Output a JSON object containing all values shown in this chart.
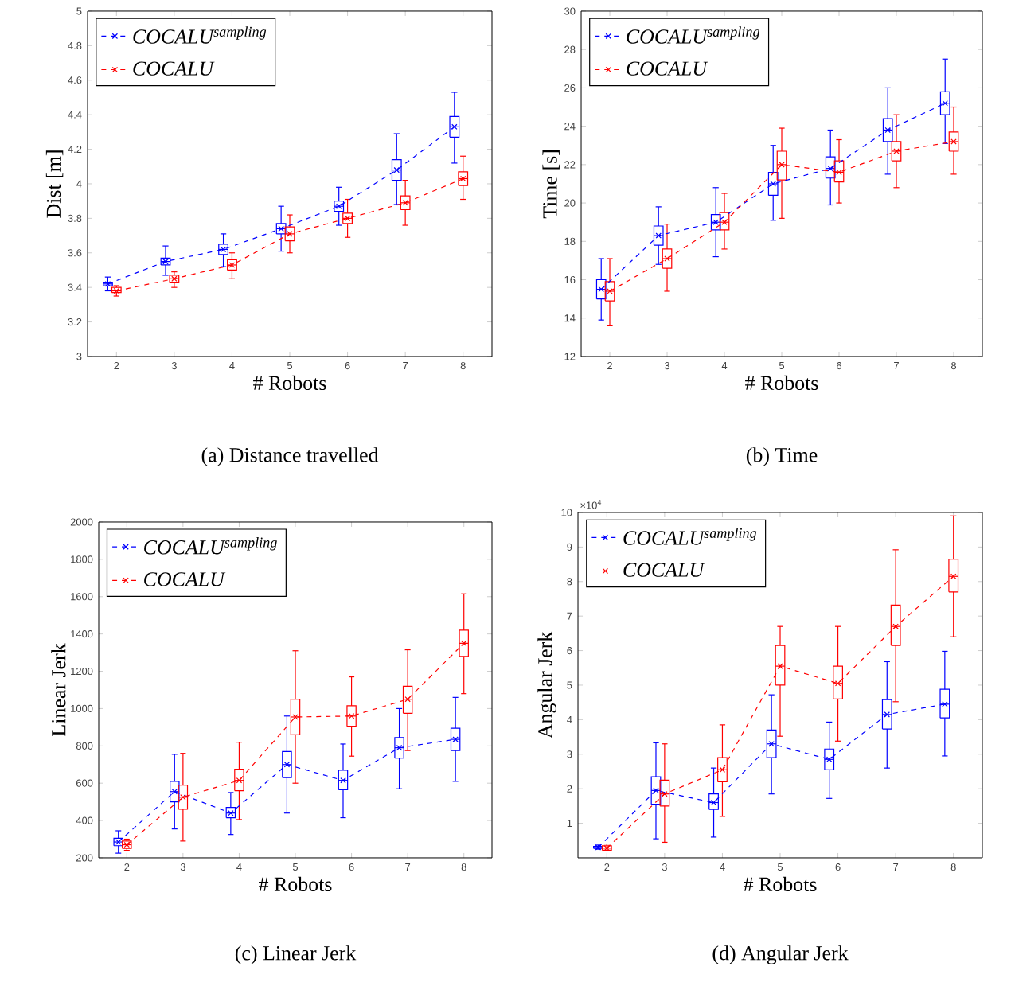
{
  "chart_data": [
    {
      "type": "box",
      "title": "(a) Distance travelled",
      "xlabel": "# Robots",
      "ylabel": "Dist [m]",
      "xlim": [
        1.5,
        8.5
      ],
      "xticks": [
        2,
        3,
        4,
        5,
        6,
        7,
        8
      ],
      "ylim": [
        3,
        5
      ],
      "yticks": [
        3,
        3.2,
        3.4,
        3.6,
        3.8,
        4,
        4.2,
        4.4,
        4.6,
        4.8,
        5
      ],
      "legend": "top left",
      "series": [
        {
          "type": "line",
          "name": "COCALU$^{sampling}$",
          "color": "#0000ff",
          "marker": "cross",
          "line_style": "dashed",
          "x": [
            1.85,
            2.85,
            3.85,
            4.85,
            5.85,
            6.85,
            7.85
          ],
          "values": [
            3.42,
            3.55,
            3.62,
            3.74,
            3.87,
            4.08,
            4.33
          ]
        },
        {
          "type": "line",
          "name": "COCALU",
          "color": "#ff0000",
          "marker": "cross",
          "line_style": "dashed",
          "x": [
            2,
            3,
            4,
            5,
            6,
            7,
            8
          ],
          "values": [
            3.38,
            3.45,
            3.53,
            3.71,
            3.8,
            3.89,
            4.03
          ]
        },
        {
          "color": "#0000ff",
          "x": [
            1.85,
            2.85,
            3.85,
            4.85,
            5.85,
            6.85,
            7.85
          ],
          "boxes": [
            {
              "low": 3.38,
              "q1": 3.41,
              "median": 3.42,
              "q3": 3.43,
              "high": 3.46
            },
            {
              "low": 3.47,
              "q1": 3.53,
              "median": 3.55,
              "q3": 3.57,
              "high": 3.64
            },
            {
              "low": 3.52,
              "q1": 3.59,
              "median": 3.62,
              "q3": 3.65,
              "high": 3.71
            },
            {
              "low": 3.61,
              "q1": 3.71,
              "median": 3.74,
              "q3": 3.77,
              "high": 3.87
            },
            {
              "low": 3.76,
              "q1": 3.84,
              "median": 3.87,
              "q3": 3.9,
              "high": 3.98
            },
            {
              "low": 3.88,
              "q1": 4.02,
              "median": 4.08,
              "q3": 4.14,
              "high": 4.29
            },
            {
              "low": 4.12,
              "q1": 4.27,
              "median": 4.33,
              "q3": 4.39,
              "high": 4.53
            }
          ]
        },
        {
          "color": "#ff0000",
          "x": [
            2,
            3,
            4,
            5,
            6,
            7,
            8
          ],
          "boxes": [
            {
              "low": 3.35,
              "q1": 3.37,
              "median": 3.38,
              "q3": 3.4,
              "high": 3.41
            },
            {
              "low": 3.4,
              "q1": 3.43,
              "median": 3.45,
              "q3": 3.47,
              "high": 3.49
            },
            {
              "low": 3.45,
              "q1": 3.5,
              "median": 3.53,
              "q3": 3.56,
              "high": 3.6
            },
            {
              "low": 3.6,
              "q1": 3.67,
              "median": 3.71,
              "q3": 3.75,
              "high": 3.82
            },
            {
              "low": 3.69,
              "q1": 3.77,
              "median": 3.8,
              "q3": 3.83,
              "high": 3.91
            },
            {
              "low": 3.76,
              "q1": 3.85,
              "median": 3.89,
              "q3": 3.93,
              "high": 4.02
            },
            {
              "low": 3.91,
              "q1": 3.99,
              "median": 4.03,
              "q3": 4.07,
              "high": 4.16
            }
          ]
        }
      ]
    },
    {
      "type": "box",
      "title": "(b) Time",
      "xlabel": "# Robots",
      "ylabel": "Time [s]",
      "xlim": [
        1.5,
        8.5
      ],
      "xticks": [
        2,
        3,
        4,
        5,
        6,
        7,
        8
      ],
      "ylim": [
        12,
        30
      ],
      "yticks": [
        12,
        14,
        16,
        18,
        20,
        22,
        24,
        26,
        28,
        30
      ],
      "legend": "top left",
      "series": [
        {
          "type": "line",
          "name": "COCALU$^{sampling}$",
          "color": "#0000ff",
          "marker": "cross",
          "line_style": "dashed",
          "x": [
            1.85,
            2.85,
            3.85,
            4.85,
            5.85,
            6.85,
            7.85
          ],
          "values": [
            15.5,
            18.3,
            19.0,
            21.0,
            21.8,
            23.8,
            25.2
          ]
        },
        {
          "type": "line",
          "name": "COCALU",
          "color": "#ff0000",
          "marker": "cross",
          "line_style": "dashed",
          "x": [
            2,
            3,
            4,
            5,
            6,
            7,
            8
          ],
          "values": [
            15.4,
            17.1,
            19.0,
            22.0,
            21.6,
            22.7,
            23.2
          ]
        },
        {
          "color": "#0000ff",
          "x": [
            1.85,
            2.85,
            3.85,
            4.85,
            5.85,
            6.85,
            7.85
          ],
          "boxes": [
            {
              "low": 13.9,
              "q1": 15.0,
              "median": 15.5,
              "q3": 16.0,
              "high": 17.1
            },
            {
              "low": 16.8,
              "q1": 17.8,
              "median": 18.3,
              "q3": 18.8,
              "high": 19.8
            },
            {
              "low": 17.2,
              "q1": 18.6,
              "median": 19.0,
              "q3": 19.4,
              "high": 20.8
            },
            {
              "low": 19.1,
              "q1": 20.4,
              "median": 21.0,
              "q3": 21.6,
              "high": 23.0
            },
            {
              "low": 19.9,
              "q1": 21.3,
              "median": 21.8,
              "q3": 22.4,
              "high": 23.8
            },
            {
              "low": 21.5,
              "q1": 23.2,
              "median": 23.8,
              "q3": 24.4,
              "high": 26.0
            },
            {
              "low": 23.1,
              "q1": 24.6,
              "median": 25.2,
              "q3": 25.8,
              "high": 27.5
            }
          ]
        },
        {
          "color": "#ff0000",
          "x": [
            2,
            3,
            4,
            5,
            6,
            7,
            8
          ],
          "boxes": [
            {
              "low": 13.6,
              "q1": 14.9,
              "median": 15.4,
              "q3": 15.9,
              "high": 17.1
            },
            {
              "low": 15.4,
              "q1": 16.6,
              "median": 17.1,
              "q3": 17.6,
              "high": 18.9
            },
            {
              "low": 17.6,
              "q1": 18.6,
              "median": 19.0,
              "q3": 19.5,
              "high": 20.5
            },
            {
              "low": 19.2,
              "q1": 21.2,
              "median": 22.0,
              "q3": 22.7,
              "high": 23.9
            },
            {
              "low": 20.0,
              "q1": 21.1,
              "median": 21.6,
              "q3": 22.2,
              "high": 23.3
            },
            {
              "low": 20.8,
              "q1": 22.2,
              "median": 22.7,
              "q3": 23.2,
              "high": 24.6
            },
            {
              "low": 21.5,
              "q1": 22.7,
              "median": 23.2,
              "q3": 23.7,
              "high": 25.0
            }
          ]
        }
      ]
    },
    {
      "type": "box",
      "title": "(c) Linear Jerk",
      "xlabel": "# Robots",
      "ylabel": "Linear Jerk",
      "xlim": [
        1.5,
        8.5
      ],
      "xticks": [
        2,
        3,
        4,
        5,
        6,
        7,
        8
      ],
      "ylim": [
        200,
        2000
      ],
      "yticks": [
        200,
        400,
        600,
        800,
        1000,
        1200,
        1400,
        1600,
        1800,
        2000
      ],
      "legend": "top left",
      "series": [
        {
          "type": "line",
          "name": "COCALU$^{sampling}$",
          "color": "#0000ff",
          "marker": "cross",
          "line_style": "dashed",
          "x": [
            1.85,
            2.85,
            3.85,
            4.85,
            5.85,
            6.85,
            7.85
          ],
          "values": [
            285,
            555,
            440,
            700,
            615,
            790,
            835
          ]
        },
        {
          "type": "line",
          "name": "COCALU",
          "color": "#ff0000",
          "marker": "cross",
          "line_style": "dashed",
          "x": [
            2,
            3,
            4,
            5,
            6,
            7,
            8
          ],
          "values": [
            270,
            525,
            615,
            955,
            960,
            1050,
            1350
          ]
        },
        {
          "color": "#0000ff",
          "x": [
            1.85,
            2.85,
            3.85,
            4.85,
            5.85,
            6.85,
            7.85
          ],
          "boxes": [
            {
              "low": 225,
              "q1": 265,
              "median": 285,
              "q3": 305,
              "high": 345
            },
            {
              "low": 355,
              "q1": 500,
              "median": 555,
              "q3": 610,
              "high": 755
            },
            {
              "low": 325,
              "q1": 415,
              "median": 440,
              "q3": 470,
              "high": 550
            },
            {
              "low": 440,
              "q1": 630,
              "median": 700,
              "q3": 770,
              "high": 960
            },
            {
              "low": 415,
              "q1": 565,
              "median": 615,
              "q3": 670,
              "high": 810
            },
            {
              "low": 570,
              "q1": 735,
              "median": 790,
              "q3": 845,
              "high": 1000
            },
            {
              "low": 610,
              "q1": 775,
              "median": 835,
              "q3": 895,
              "high": 1060
            }
          ]
        },
        {
          "color": "#ff0000",
          "x": [
            2,
            3,
            4,
            5,
            6,
            7,
            8
          ],
          "boxes": [
            {
              "low": 240,
              "q1": 250,
              "median": 270,
              "q3": 290,
              "high": 300
            },
            {
              "low": 290,
              "q1": 460,
              "median": 525,
              "q3": 590,
              "high": 760
            },
            {
              "low": 405,
              "q1": 560,
              "median": 615,
              "q3": 675,
              "high": 820
            },
            {
              "low": 600,
              "q1": 860,
              "median": 955,
              "q3": 1050,
              "high": 1310
            },
            {
              "low": 745,
              "q1": 905,
              "median": 960,
              "q3": 1015,
              "high": 1170
            },
            {
              "low": 775,
              "q1": 975,
              "median": 1050,
              "q3": 1120,
              "high": 1315
            },
            {
              "low": 1080,
              "q1": 1280,
              "median": 1350,
              "q3": 1420,
              "high": 1615
            }
          ]
        }
      ]
    },
    {
      "type": "box",
      "title": "(d) Angular Jerk",
      "xlabel": "# Robots",
      "ylabel": "Angular Jerk",
      "xlim": [
        1.5,
        8.5
      ],
      "xticks": [
        2,
        3,
        4,
        5,
        6,
        7,
        8
      ],
      "ylim": [
        0,
        10
      ],
      "yticks": [
        1,
        2,
        3,
        4,
        5,
        6,
        7,
        8,
        9,
        10
      ],
      "legend": "top left",
      "annotations": [
        "×10$^{4}$"
      ],
      "series": [
        {
          "type": "line",
          "name": "COCALU$^{sampling}$",
          "color": "#0000ff",
          "marker": "cross",
          "line_style": "dashed",
          "x": [
            1.85,
            2.85,
            3.85,
            4.85,
            5.85,
            6.85,
            7.85
          ],
          "values": [
            0.3,
            1.95,
            1.6,
            3.3,
            2.85,
            4.15,
            4.45
          ]
        },
        {
          "type": "line",
          "name": "COCALU",
          "color": "#ff0000",
          "marker": "cross",
          "line_style": "dashed",
          "x": [
            2,
            3,
            4,
            5,
            6,
            7,
            8
          ],
          "values": [
            0.28,
            1.85,
            2.55,
            5.55,
            5.05,
            6.7,
            8.15
          ]
        },
        {
          "color": "#0000ff",
          "x": [
            1.85,
            2.85,
            3.85,
            4.85,
            5.85,
            6.85,
            7.85
          ],
          "boxes": [
            {
              "low": 0.25,
              "q1": 0.27,
              "median": 0.3,
              "q3": 0.33,
              "high": 0.37
            },
            {
              "low": 0.55,
              "q1": 1.55,
              "median": 1.95,
              "q3": 2.35,
              "high": 3.33
            },
            {
              "low": 0.6,
              "q1": 1.4,
              "median": 1.6,
              "q3": 1.85,
              "high": 2.6
            },
            {
              "low": 1.85,
              "q1": 2.9,
              "median": 3.3,
              "q3": 3.7,
              "high": 4.72
            },
            {
              "low": 1.72,
              "q1": 2.55,
              "median": 2.85,
              "q3": 3.15,
              "high": 3.93
            },
            {
              "low": 2.6,
              "q1": 3.73,
              "median": 4.15,
              "q3": 4.58,
              "high": 5.68
            },
            {
              "low": 2.95,
              "q1": 4.05,
              "median": 4.45,
              "q3": 4.88,
              "high": 5.98
            }
          ]
        },
        {
          "color": "#ff0000",
          "x": [
            2,
            3,
            4,
            5,
            6,
            7,
            8
          ],
          "boxes": [
            {
              "low": 0.2,
              "q1": 0.22,
              "median": 0.28,
              "q3": 0.35,
              "high": 0.4
            },
            {
              "low": 0.45,
              "q1": 1.5,
              "median": 1.85,
              "q3": 2.25,
              "high": 3.3
            },
            {
              "low": 1.2,
              "q1": 2.2,
              "median": 2.55,
              "q3": 2.9,
              "high": 3.85
            },
            {
              "low": 3.52,
              "q1": 5.0,
              "median": 5.55,
              "q3": 6.15,
              "high": 6.7
            },
            {
              "low": 3.38,
              "q1": 4.6,
              "median": 5.05,
              "q3": 5.55,
              "high": 6.7
            },
            {
              "low": 4.52,
              "q1": 6.15,
              "median": 6.7,
              "q3": 7.32,
              "high": 8.92
            },
            {
              "low": 6.4,
              "q1": 7.7,
              "median": 8.15,
              "q3": 8.65,
              "high": 9.9
            }
          ]
        }
      ]
    }
  ]
}
